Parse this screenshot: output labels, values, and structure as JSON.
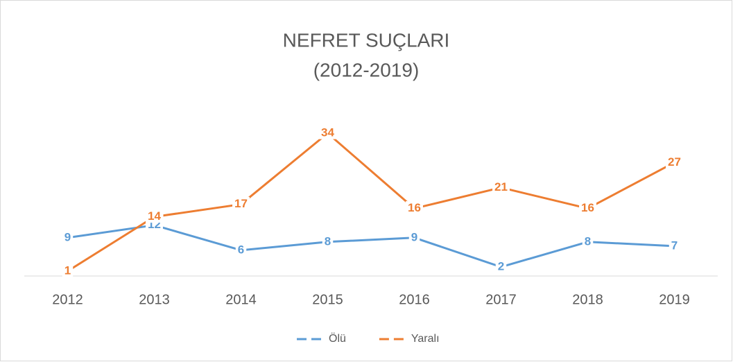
{
  "chart_data": {
    "type": "line",
    "title": "NEFRET SUÇLARI",
    "subtitle": "(2012-2019)",
    "categories": [
      "2012",
      "2013",
      "2014",
      "2015",
      "2016",
      "2017",
      "2018",
      "2019"
    ],
    "series": [
      {
        "name": "Ölü",
        "color": "#5b9bd5",
        "values": [
          9,
          12,
          6,
          8,
          9,
          2,
          8,
          7
        ]
      },
      {
        "name": "Yaralı",
        "color": "#ed7d31",
        "values": [
          1,
          14,
          17,
          34,
          16,
          21,
          16,
          27
        ]
      }
    ],
    "ylim": [
      0,
      40
    ],
    "legend": "bottom"
  }
}
